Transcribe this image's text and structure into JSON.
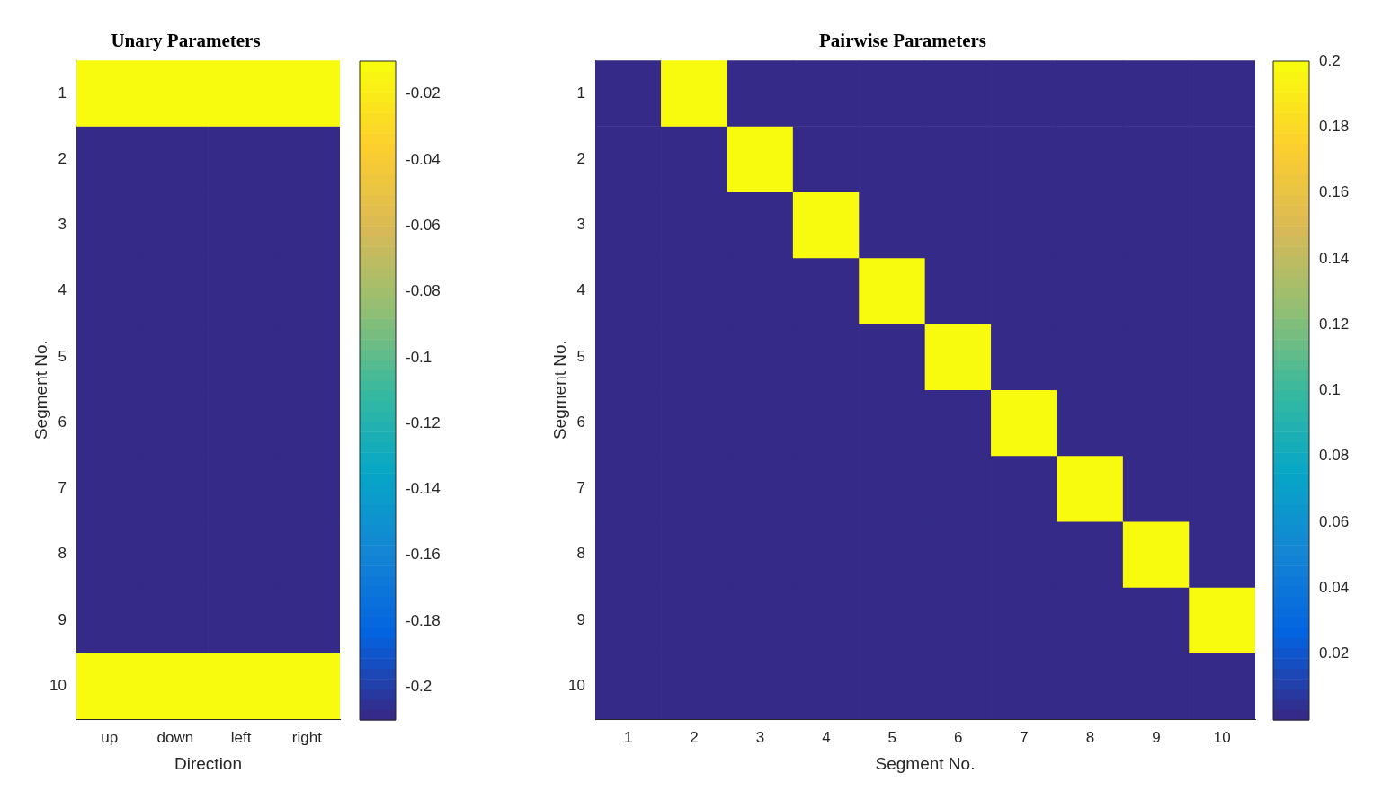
{
  "chart_data": [
    {
      "type": "heatmap",
      "title": "Unary Parameters",
      "xlabel": "Direction",
      "ylabel": "Segment No.",
      "categories": [
        "up",
        "down",
        "left",
        "right"
      ],
      "y_categories": [
        "1",
        "2",
        "3",
        "4",
        "5",
        "6",
        "7",
        "8",
        "9",
        "10"
      ],
      "cells": [
        [
          -0.01,
          -0.01,
          -0.01,
          -0.01
        ],
        [
          -0.21,
          -0.21,
          -0.21,
          -0.21
        ],
        [
          -0.21,
          -0.21,
          -0.21,
          -0.21
        ],
        [
          -0.21,
          -0.21,
          -0.21,
          -0.21
        ],
        [
          -0.21,
          -0.21,
          -0.21,
          -0.21
        ],
        [
          -0.21,
          -0.21,
          -0.21,
          -0.21
        ],
        [
          -0.21,
          -0.21,
          -0.21,
          -0.21
        ],
        [
          -0.21,
          -0.21,
          -0.21,
          -0.21
        ],
        [
          -0.21,
          -0.21,
          -0.21,
          -0.21
        ],
        [
          -0.01,
          -0.01,
          -0.01,
          -0.01
        ]
      ],
      "clim": [
        -0.21,
        -0.01
      ],
      "cticks": [
        -0.2,
        -0.18,
        -0.16,
        -0.14,
        -0.12,
        -0.1,
        -0.08,
        -0.06,
        -0.04,
        -0.02
      ]
    },
    {
      "type": "heatmap",
      "title": "Pairwise Parameters",
      "xlabel": "Segment No.",
      "ylabel": "Segment No.",
      "categories": [
        "1",
        "2",
        "3",
        "4",
        "5",
        "6",
        "7",
        "8",
        "9",
        "10"
      ],
      "y_categories": [
        "1",
        "2",
        "3",
        "4",
        "5",
        "6",
        "7",
        "8",
        "9",
        "10"
      ],
      "cells": [
        [
          0,
          0.2,
          0,
          0,
          0,
          0,
          0,
          0,
          0,
          0
        ],
        [
          0,
          0,
          0.2,
          0,
          0,
          0,
          0,
          0,
          0,
          0
        ],
        [
          0,
          0,
          0,
          0.2,
          0,
          0,
          0,
          0,
          0,
          0
        ],
        [
          0,
          0,
          0,
          0,
          0.2,
          0,
          0,
          0,
          0,
          0
        ],
        [
          0,
          0,
          0,
          0,
          0,
          0.2,
          0,
          0,
          0,
          0
        ],
        [
          0,
          0,
          0,
          0,
          0,
          0,
          0.2,
          0,
          0,
          0
        ],
        [
          0,
          0,
          0,
          0,
          0,
          0,
          0,
          0.2,
          0,
          0
        ],
        [
          0,
          0,
          0,
          0,
          0,
          0,
          0,
          0,
          0.2,
          0
        ],
        [
          0,
          0,
          0,
          0,
          0,
          0,
          0,
          0,
          0,
          0.2
        ],
        [
          0,
          0,
          0,
          0,
          0,
          0,
          0,
          0,
          0,
          0
        ]
      ],
      "clim": [
        0,
        0.2
      ],
      "cticks": [
        0.02,
        0.04,
        0.06,
        0.08,
        0.1,
        0.12,
        0.14,
        0.16,
        0.18,
        0.2
      ]
    }
  ]
}
